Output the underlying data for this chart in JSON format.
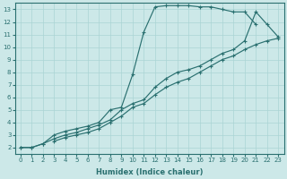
{
  "xlabel": "Humidex (Indice chaleur)",
  "ylabel": "",
  "xlim": [
    -0.5,
    23.5
  ],
  "ylim": [
    1.5,
    13.5
  ],
  "yticks": [
    2,
    3,
    4,
    5,
    6,
    7,
    8,
    9,
    10,
    11,
    12,
    13
  ],
  "xticks": [
    0,
    1,
    2,
    3,
    4,
    5,
    6,
    7,
    8,
    9,
    10,
    11,
    12,
    13,
    14,
    15,
    16,
    17,
    18,
    19,
    20,
    21,
    22,
    23
  ],
  "background_color": "#cce8e8",
  "grid_color": "#aad4d4",
  "line_color": "#2a7070",
  "line1_x": [
    0,
    1,
    2,
    3,
    4,
    5,
    6,
    7,
    8,
    9,
    10,
    11,
    12,
    13,
    14,
    15,
    16,
    17,
    18,
    19,
    20,
    21
  ],
  "line1_y": [
    2.0,
    2.0,
    2.3,
    3.0,
    3.3,
    3.5,
    3.7,
    4.0,
    5.0,
    5.2,
    7.8,
    11.2,
    13.2,
    13.3,
    13.3,
    13.3,
    13.2,
    13.2,
    13.0,
    12.8,
    12.8,
    11.8
  ],
  "line2_x": [
    0,
    1,
    2,
    3,
    4,
    5,
    6,
    7,
    8,
    9,
    10,
    11,
    12,
    13,
    14,
    15,
    16,
    17,
    18,
    19,
    20,
    21,
    22,
    23
  ],
  "line2_y": [
    2.0,
    2.0,
    2.3,
    2.7,
    3.0,
    3.2,
    3.5,
    3.8,
    4.2,
    5.0,
    5.5,
    5.8,
    6.8,
    7.5,
    8.0,
    8.2,
    8.5,
    9.0,
    9.5,
    9.8,
    10.5,
    12.8,
    11.8,
    10.8
  ],
  "line3_x": [
    3,
    4,
    5,
    6,
    7,
    8,
    9,
    10,
    11,
    12,
    13,
    14,
    15,
    16,
    17,
    18,
    19,
    20,
    21,
    22,
    23
  ],
  "line3_y": [
    2.5,
    2.8,
    3.0,
    3.2,
    3.5,
    4.0,
    4.5,
    5.2,
    5.5,
    6.2,
    6.8,
    7.2,
    7.5,
    8.0,
    8.5,
    9.0,
    9.3,
    9.8,
    10.2,
    10.5,
    10.7
  ]
}
